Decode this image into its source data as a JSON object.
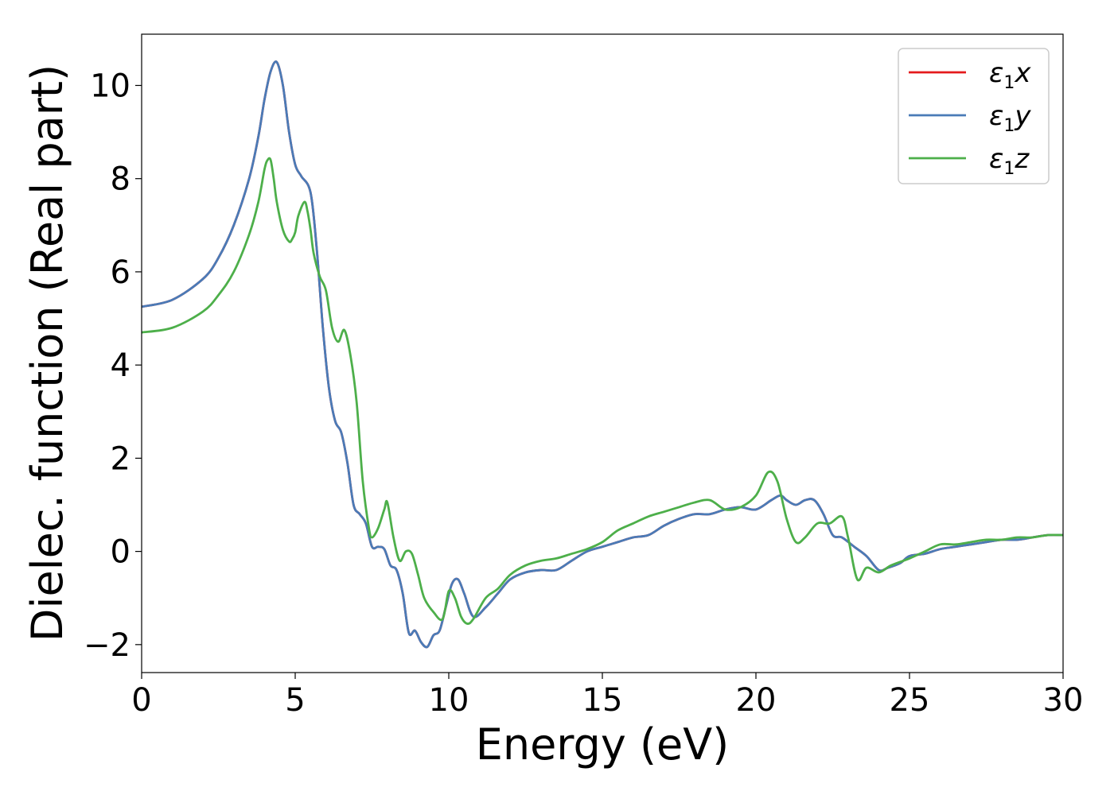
{
  "chart_data": {
    "type": "line",
    "title": "",
    "xlabel": "Energy (eV)",
    "ylabel": "Dielec. function (Real part)",
    "xlim": [
      0,
      30
    ],
    "ylim": [
      -2.6,
      11.1
    ],
    "xticks": [
      0,
      5,
      10,
      15,
      20,
      25,
      30
    ],
    "yticks": [
      -2,
      0,
      2,
      4,
      6,
      8,
      10
    ],
    "xtick_labels": [
      "0",
      "5",
      "10",
      "15",
      "20",
      "25",
      "30"
    ],
    "ytick_labels": [
      "−2",
      "0",
      "2",
      "4",
      "6",
      "8",
      "10"
    ],
    "grid": false,
    "legend_position": "top-right",
    "series": [
      {
        "name": "ε1x",
        "legend": {
          "base": "ε",
          "sub": "1",
          "suffix": "x"
        },
        "color": "#e41a1c",
        "x": [
          0,
          1,
          2,
          2.5,
          3,
          3.5,
          3.8,
          4.0,
          4.2,
          4.4,
          4.6,
          4.8,
          5.0,
          5.2,
          5.5,
          5.7,
          5.9,
          6.1,
          6.3,
          6.5,
          6.7,
          6.9,
          7.1,
          7.3,
          7.5,
          7.7,
          7.9,
          8.1,
          8.3,
          8.5,
          8.7,
          8.9,
          9.1,
          9.3,
          9.5,
          9.7,
          9.9,
          10.1,
          10.3,
          10.5,
          10.8,
          11.2,
          11.6,
          12.0,
          12.5,
          13.0,
          13.5,
          14.0,
          14.5,
          15.0,
          15.5,
          16.0,
          16.5,
          17.0,
          17.5,
          18.0,
          18.5,
          19.0,
          19.5,
          20.0,
          20.5,
          20.8,
          21.0,
          21.3,
          21.6,
          21.9,
          22.2,
          22.5,
          22.8,
          23.2,
          23.6,
          24.0,
          24.3,
          24.7,
          25.0,
          25.5,
          26.0,
          26.5,
          27.0,
          27.5,
          28.0,
          28.5,
          29.0,
          29.5,
          30.0
        ],
        "y": [
          5.25,
          5.4,
          5.85,
          6.3,
          7.0,
          8.0,
          8.9,
          9.7,
          10.3,
          10.5,
          10.0,
          9.0,
          8.3,
          8.05,
          7.7,
          6.5,
          4.8,
          3.5,
          2.8,
          2.55,
          1.9,
          1.0,
          0.8,
          0.6,
          0.1,
          0.1,
          0.05,
          -0.3,
          -0.4,
          -0.9,
          -1.75,
          -1.7,
          -1.95,
          -2.05,
          -1.8,
          -1.7,
          -1.2,
          -0.7,
          -0.6,
          -0.9,
          -1.4,
          -1.2,
          -0.9,
          -0.6,
          -0.45,
          -0.4,
          -0.4,
          -0.2,
          0.0,
          0.1,
          0.2,
          0.3,
          0.35,
          0.55,
          0.7,
          0.8,
          0.8,
          0.9,
          0.95,
          0.9,
          1.1,
          1.2,
          1.1,
          1.0,
          1.1,
          1.1,
          0.8,
          0.35,
          0.3,
          0.1,
          -0.1,
          -0.4,
          -0.35,
          -0.25,
          -0.1,
          -0.05,
          0.05,
          0.1,
          0.15,
          0.2,
          0.25,
          0.25,
          0.3,
          0.35,
          0.35
        ]
      },
      {
        "name": "ε1y",
        "legend": {
          "base": "ε",
          "sub": "1",
          "suffix": "y"
        },
        "color": "#4a7bb7",
        "x": [
          0,
          1,
          2,
          2.5,
          3,
          3.5,
          3.8,
          4.0,
          4.2,
          4.4,
          4.6,
          4.8,
          5.0,
          5.2,
          5.5,
          5.7,
          5.9,
          6.1,
          6.3,
          6.5,
          6.7,
          6.9,
          7.1,
          7.3,
          7.5,
          7.7,
          7.9,
          8.1,
          8.3,
          8.5,
          8.7,
          8.9,
          9.1,
          9.3,
          9.5,
          9.7,
          9.9,
          10.1,
          10.3,
          10.5,
          10.8,
          11.2,
          11.6,
          12.0,
          12.5,
          13.0,
          13.5,
          14.0,
          14.5,
          15.0,
          15.5,
          16.0,
          16.5,
          17.0,
          17.5,
          18.0,
          18.5,
          19.0,
          19.5,
          20.0,
          20.5,
          20.8,
          21.0,
          21.3,
          21.6,
          21.9,
          22.2,
          22.5,
          22.8,
          23.2,
          23.6,
          24.0,
          24.3,
          24.7,
          25.0,
          25.5,
          26.0,
          26.5,
          27.0,
          27.5,
          28.0,
          28.5,
          29.0,
          29.5,
          30.0
        ],
        "y": [
          5.25,
          5.4,
          5.85,
          6.3,
          7.0,
          8.0,
          8.9,
          9.7,
          10.3,
          10.5,
          10.0,
          9.0,
          8.3,
          8.05,
          7.7,
          6.5,
          4.8,
          3.5,
          2.8,
          2.55,
          1.9,
          1.0,
          0.8,
          0.6,
          0.1,
          0.1,
          0.05,
          -0.3,
          -0.4,
          -0.9,
          -1.75,
          -1.7,
          -1.95,
          -2.05,
          -1.8,
          -1.7,
          -1.2,
          -0.7,
          -0.6,
          -0.9,
          -1.4,
          -1.2,
          -0.9,
          -0.6,
          -0.45,
          -0.4,
          -0.4,
          -0.2,
          0.0,
          0.1,
          0.2,
          0.3,
          0.35,
          0.55,
          0.7,
          0.8,
          0.8,
          0.9,
          0.95,
          0.9,
          1.1,
          1.2,
          1.1,
          1.0,
          1.1,
          1.1,
          0.8,
          0.35,
          0.3,
          0.1,
          -0.1,
          -0.4,
          -0.35,
          -0.25,
          -0.1,
          -0.05,
          0.05,
          0.1,
          0.15,
          0.2,
          0.25,
          0.25,
          0.3,
          0.35,
          0.35
        ]
      },
      {
        "name": "ε1z",
        "legend": {
          "base": "ε",
          "sub": "1",
          "suffix": "z"
        },
        "color": "#4daf4a",
        "x": [
          0,
          1,
          2,
          2.5,
          3,
          3.5,
          3.8,
          4.0,
          4.1,
          4.2,
          4.3,
          4.4,
          4.6,
          4.8,
          4.9,
          5.0,
          5.1,
          5.3,
          5.4,
          5.5,
          5.6,
          5.8,
          6.0,
          6.2,
          6.4,
          6.6,
          6.8,
          7.0,
          7.2,
          7.4,
          7.5,
          7.7,
          7.9,
          8.0,
          8.2,
          8.4,
          8.6,
          8.8,
          9.0,
          9.2,
          9.5,
          9.8,
          10.0,
          10.2,
          10.4,
          10.6,
          10.8,
          11.2,
          11.6,
          12.0,
          12.5,
          13.0,
          13.5,
          14.0,
          14.5,
          15.0,
          15.5,
          16.0,
          16.5,
          17.0,
          17.5,
          18.0,
          18.5,
          19.0,
          19.5,
          20.0,
          20.4,
          20.7,
          21.0,
          21.3,
          21.6,
          22.0,
          22.4,
          22.8,
          23.0,
          23.3,
          23.6,
          24.0,
          24.4,
          25.0,
          25.5,
          26.0,
          26.5,
          27.0,
          27.5,
          28.0,
          28.5,
          29.0,
          29.5,
          30.0
        ],
        "y": [
          4.7,
          4.8,
          5.15,
          5.5,
          6.0,
          6.8,
          7.5,
          8.2,
          8.4,
          8.4,
          8.0,
          7.5,
          6.9,
          6.65,
          6.7,
          6.85,
          7.2,
          7.5,
          7.3,
          6.9,
          6.4,
          5.9,
          5.6,
          4.8,
          4.5,
          4.75,
          4.2,
          3.2,
          1.5,
          0.5,
          0.3,
          0.5,
          0.9,
          1.05,
          0.3,
          -0.2,
          0.0,
          -0.05,
          -0.5,
          -1.0,
          -1.3,
          -1.45,
          -0.85,
          -1.0,
          -1.4,
          -1.55,
          -1.45,
          -1.0,
          -0.8,
          -0.5,
          -0.3,
          -0.2,
          -0.15,
          -0.05,
          0.05,
          0.2,
          0.45,
          0.6,
          0.75,
          0.85,
          0.95,
          1.05,
          1.1,
          0.9,
          0.95,
          1.2,
          1.7,
          1.5,
          0.7,
          0.2,
          0.3,
          0.6,
          0.6,
          0.75,
          0.3,
          -0.6,
          -0.35,
          -0.45,
          -0.3,
          -0.15,
          0.0,
          0.15,
          0.15,
          0.2,
          0.25,
          0.25,
          0.3,
          0.3,
          0.35,
          0.35
        ]
      }
    ]
  }
}
